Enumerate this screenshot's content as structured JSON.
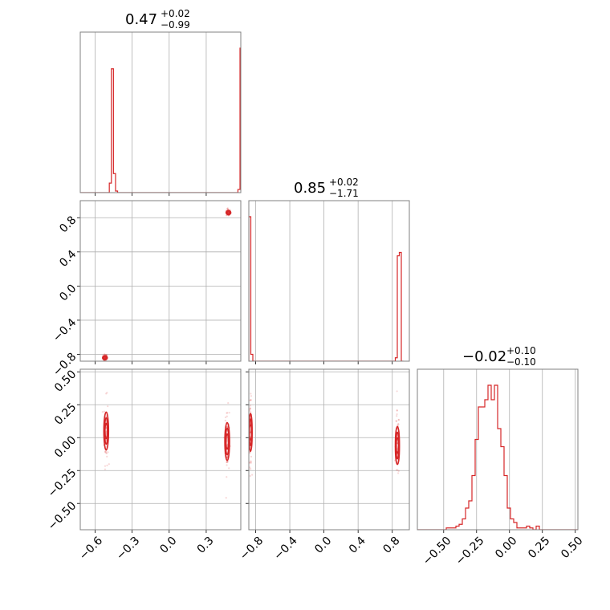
{
  "colors": {
    "series": "#d62728",
    "grid": "#b0b0b0",
    "frame": "#808080"
  },
  "chart_data": {
    "type": "corner",
    "grid": true,
    "panels": [
      {
        "kind": "histogram",
        "row": 0,
        "col": 0,
        "title": {
          "value": "0.47",
          "plus": "+0.02",
          "minus": "−0.99"
        },
        "xlim": [
          -0.72,
          0.58
        ],
        "bins_start": -0.72,
        "bin_width": 0.0168,
        "counts": [
          0,
          0,
          0,
          0,
          0,
          0,
          0,
          0,
          0,
          0,
          0,
          0,
          0,
          0,
          0.06,
          0.78,
          0.12,
          0.01,
          0,
          0,
          0,
          0,
          0,
          0,
          0,
          0,
          0,
          0,
          0,
          0,
          0,
          0,
          0,
          0,
          0,
          0,
          0,
          0,
          0,
          0,
          0,
          0,
          0,
          0,
          0,
          0,
          0,
          0,
          0,
          0,
          0,
          0,
          0,
          0,
          0,
          0,
          0,
          0,
          0,
          0,
          0,
          0,
          0,
          0,
          0,
          0,
          0,
          0,
          0,
          0,
          0,
          0,
          0,
          0,
          0,
          0,
          0.02,
          0.91,
          0.31,
          0.01,
          0
        ],
        "max": 0.91
      },
      {
        "kind": "scatter",
        "row": 1,
        "col": 0,
        "xlim": [
          -0.72,
          0.58
        ],
        "ylim": [
          -0.88,
          1.0
        ],
        "yticks": [
          -0.8,
          -0.4,
          0.0,
          0.4,
          0.8
        ],
        "yticklabels": [
          "−0.8",
          "−0.4",
          "0.0",
          "0.4",
          "0.8"
        ],
        "clusters": [
          {
            "cx": -0.52,
            "cy": -0.84,
            "sx": 0.012,
            "sy": 0.015
          },
          {
            "cx": 0.48,
            "cy": 0.86,
            "sx": 0.012,
            "sy": 0.015
          }
        ]
      },
      {
        "kind": "histogram",
        "row": 1,
        "col": 1,
        "title": {
          "value": "0.85",
          "plus": "+0.02",
          "minus": "−1.71"
        },
        "xlim": [
          -0.88,
          1.0
        ],
        "bins_start": -0.88,
        "bin_width": 0.0235,
        "counts": [
          0.85,
          0.04,
          0,
          0,
          0,
          0,
          0,
          0,
          0,
          0,
          0,
          0,
          0,
          0,
          0,
          0,
          0,
          0,
          0,
          0,
          0,
          0,
          0,
          0,
          0,
          0,
          0,
          0,
          0,
          0,
          0,
          0,
          0,
          0,
          0,
          0,
          0,
          0,
          0,
          0,
          0,
          0,
          0,
          0,
          0,
          0,
          0,
          0,
          0,
          0,
          0,
          0,
          0,
          0,
          0,
          0,
          0,
          0,
          0,
          0,
          0,
          0,
          0,
          0,
          0,
          0,
          0,
          0,
          0,
          0,
          0,
          0,
          0,
          0.02,
          0.62,
          0.64,
          0
        ],
        "max": 0.85
      },
      {
        "kind": "scatter",
        "row": 2,
        "col": 0,
        "xlim": [
          -0.72,
          0.58
        ],
        "ylim": [
          -0.7,
          0.52
        ],
        "xticks": [
          -0.6,
          -0.3,
          0.0,
          0.3
        ],
        "xticklabels": [
          "−0.6",
          "−0.3",
          "0.0",
          "0.3"
        ],
        "yticks": [
          -0.5,
          -0.25,
          0.0,
          0.25,
          0.5
        ],
        "yticklabels": [
          "−0.50",
          "−0.25",
          "0.00",
          "0.25",
          "0.50"
        ],
        "clusters": [
          {
            "cx": -0.51,
            "cy": 0.05,
            "sx": 0.012,
            "sy": 0.09
          },
          {
            "cx": 0.47,
            "cy": -0.03,
            "sx": 0.012,
            "sy": 0.09
          }
        ]
      },
      {
        "kind": "scatter",
        "row": 2,
        "col": 1,
        "xlim": [
          -0.88,
          1.0
        ],
        "ylim": [
          -0.7,
          0.52
        ],
        "xticks": [
          -0.8,
          -0.4,
          0.0,
          0.4,
          0.8
        ],
        "xticklabels": [
          "−0.8",
          "−0.4",
          "0.0",
          "0.4",
          "0.8"
        ],
        "clusters": [
          {
            "cx": -0.86,
            "cy": 0.04,
            "sx": 0.012,
            "sy": 0.09
          },
          {
            "cx": 0.86,
            "cy": -0.06,
            "sx": 0.015,
            "sy": 0.09
          }
        ]
      },
      {
        "kind": "histogram",
        "row": 2,
        "col": 2,
        "title": {
          "value": "−0.02",
          "plus": "+0.10",
          "minus": "−0.10"
        },
        "xlim": [
          -0.7,
          0.52
        ],
        "xticks": [
          -0.5,
          -0.25,
          0.0,
          0.25,
          0.5
        ],
        "xticklabels": [
          "−0.50",
          "−0.25",
          "0.00",
          "0.25",
          "0.50"
        ],
        "bins_start": -0.7,
        "bin_width": 0.0244,
        "counts": [
          0,
          0,
          0,
          0,
          0,
          0,
          0,
          0,
          0,
          0.01,
          0.01,
          0.01,
          0.02,
          0.03,
          0.06,
          0.12,
          0.16,
          0.3,
          0.5,
          0.68,
          0.68,
          0.72,
          0.8,
          0.72,
          0.8,
          0.56,
          0.46,
          0.3,
          0.12,
          0.06,
          0.04,
          0.01,
          0.01,
          0.01,
          0.02,
          0.01,
          0,
          0.02,
          0,
          0,
          0,
          0,
          0,
          0,
          0,
          0,
          0,
          0,
          0,
          0
        ],
        "max": 0.8
      }
    ]
  }
}
